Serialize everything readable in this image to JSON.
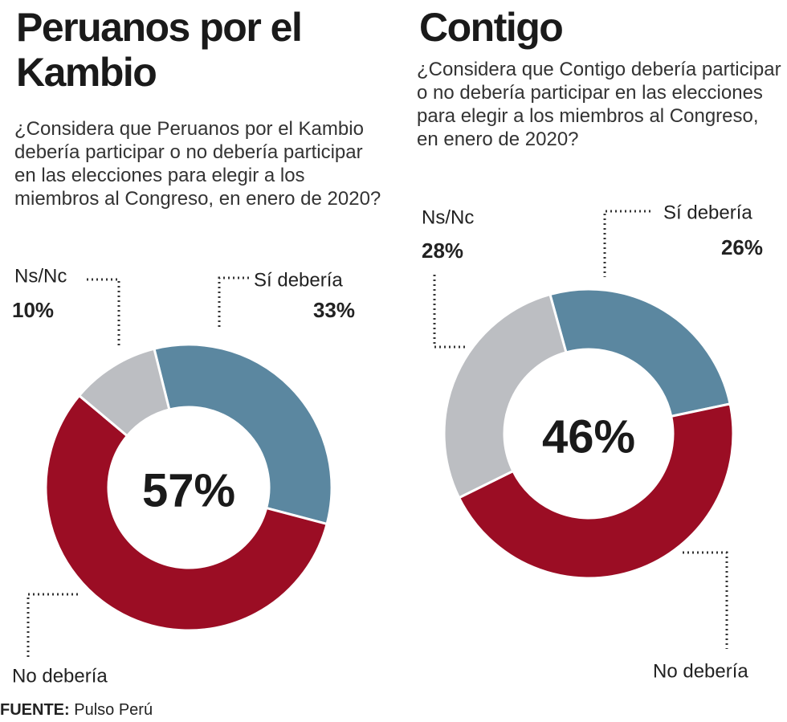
{
  "chart_data": [
    {
      "type": "pie",
      "title": "Peruanos por el Kambio",
      "subtitle": "¿Considera que Peruanos por el Kambio debería participar o no debería participar en las elecciones para elegir a los miembros al Congreso, en enero de 2020?",
      "categories": [
        "Sí debería",
        "No debería",
        "Ns/Nc"
      ],
      "values": [
        33,
        57,
        10
      ],
      "value_labels": [
        "33%",
        "57%",
        "10%"
      ],
      "colors": [
        "#5b87a0",
        "#9b0d24",
        "#bcbec2"
      ]
    },
    {
      "type": "pie",
      "title": "Contigo",
      "subtitle": "¿Considera que Contigo debería participar o no debería participar en las elecciones  para elegir a los miembros al Congreso, en enero de 2020?",
      "categories": [
        "Sí debería",
        "No debería",
        "Ns/Nc"
      ],
      "values": [
        26,
        46,
        28
      ],
      "value_labels": [
        "26%",
        "46%",
        "28%"
      ],
      "colors": [
        "#5b87a0",
        "#9b0d24",
        "#bcbec2"
      ]
    }
  ],
  "source_label": "FUENTE:",
  "source": "Pulso Perú"
}
